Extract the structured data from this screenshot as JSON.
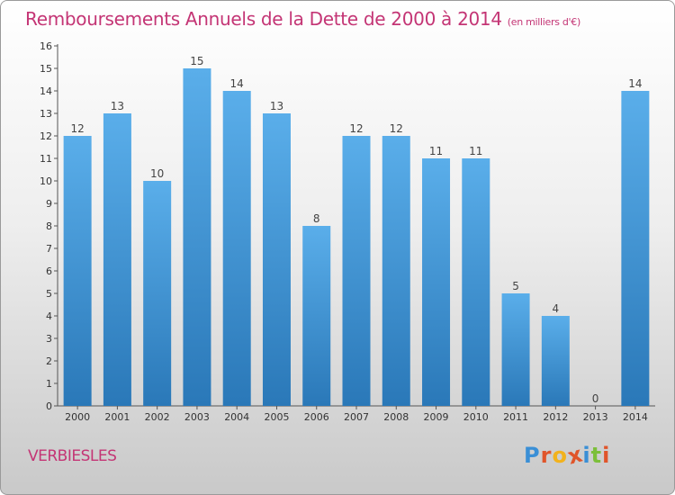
{
  "header": {
    "title": "Remboursements Annuels de la Dette de 2000 à 2014",
    "unit": "(en milliers d'€)"
  },
  "footer": {
    "location": "VERBIESLES",
    "brand": [
      "P",
      "r",
      "o",
      "x",
      "i",
      "t",
      "i"
    ]
  },
  "colors": {
    "title": "#c43575",
    "bar_light": "#5aaeea",
    "bar_dark": "#2a78b8",
    "brand": [
      "#3a8fd6",
      "#e0552a",
      "#f2b21c",
      "#e0552a",
      "#3a8fd6",
      "#7cbf3a",
      "#e0552a"
    ]
  },
  "chart_data": {
    "type": "bar",
    "categories": [
      "2000",
      "2001",
      "2002",
      "2003",
      "2004",
      "2005",
      "2006",
      "2007",
      "2008",
      "2009",
      "2010",
      "2011",
      "2012",
      "2013",
      "2014"
    ],
    "values": [
      12,
      13,
      10,
      15,
      14,
      13,
      8,
      12,
      12,
      11,
      11,
      5,
      4,
      0,
      14
    ],
    "title": "Remboursements Annuels de la Dette de 2000 à 2014",
    "xlabel": "",
    "ylabel": "",
    "ylim": [
      0,
      16
    ],
    "yticks": [
      0,
      1,
      2,
      3,
      4,
      5,
      6,
      7,
      8,
      9,
      10,
      11,
      12,
      13,
      14,
      15,
      16
    ],
    "grid": false,
    "legend": "none"
  }
}
